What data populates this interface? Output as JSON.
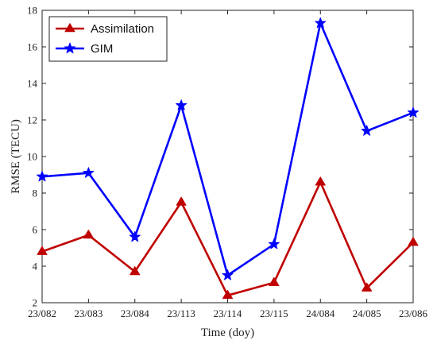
{
  "chart_data": {
    "type": "line",
    "xlabel": "Time (doy)",
    "ylabel": "RMSE (TECU)",
    "categories": [
      "23/082",
      "23/083",
      "23/084",
      "23/113",
      "23/114",
      "23/115",
      "24/084",
      "24/085",
      "23/086"
    ],
    "ylim": [
      2,
      18
    ],
    "yticks": [
      2,
      4,
      6,
      8,
      10,
      12,
      14,
      16,
      18
    ],
    "grid": false,
    "legend_position": "top-left",
    "series": [
      {
        "name": "Assimilation",
        "color": "#c00000",
        "marker": "triangle",
        "values": [
          4.8,
          5.7,
          3.7,
          7.5,
          2.4,
          3.1,
          8.6,
          2.8,
          5.3
        ]
      },
      {
        "name": "GIM",
        "color": "#0000ff",
        "marker": "star",
        "values": [
          8.9,
          9.1,
          5.6,
          12.8,
          3.5,
          5.2,
          17.3,
          11.4,
          12.4
        ]
      }
    ]
  }
}
